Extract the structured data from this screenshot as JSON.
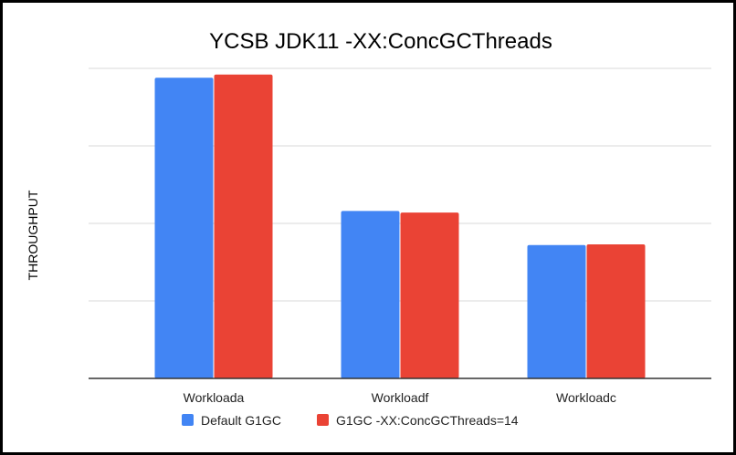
{
  "chart_data": {
    "type": "bar",
    "title": "YCSB JDK11 -XX:ConcGCThreads",
    "xlabel": "",
    "ylabel": "THROUGHPUT",
    "categories": [
      "Workloada",
      "Workloadf",
      "Workloadc"
    ],
    "series": [
      {
        "name": "Default G1GC",
        "color": "#4285f4",
        "values": [
          3.88,
          2.16,
          1.72
        ]
      },
      {
        "name": "G1GC -XX:ConcGCThreads=14",
        "color": "#ea4335",
        "values": [
          3.92,
          2.14,
          1.73
        ]
      }
    ],
    "ylim": [
      0,
      4
    ],
    "y_tick_labels_shown": false,
    "grid": true,
    "legend": "bottom"
  }
}
